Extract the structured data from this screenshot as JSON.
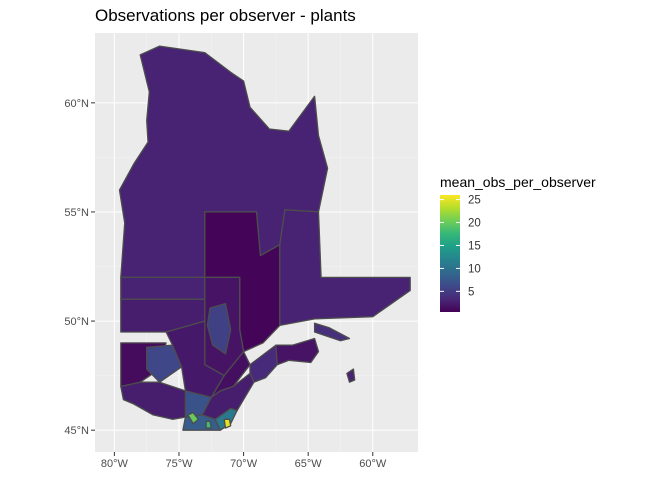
{
  "chart_data": {
    "type": "choropleth",
    "title": "Observations per observer - plants",
    "region": "Quebec",
    "x_axis": {
      "unit": "longitude",
      "range": [
        -81.5,
        -56.5
      ],
      "ticks": [
        {
          "value": -80,
          "label": "80°W"
        },
        {
          "value": -75,
          "label": "75°W"
        },
        {
          "value": -70,
          "label": "70°W"
        },
        {
          "value": -65,
          "label": "65°W"
        },
        {
          "value": -60,
          "label": "60°W"
        }
      ]
    },
    "y_axis": {
      "unit": "latitude",
      "range": [
        44.0,
        63.2
      ],
      "ticks": [
        {
          "value": 45,
          "label": "45°N"
        },
        {
          "value": 50,
          "label": "50°N"
        },
        {
          "value": 55,
          "label": "55°N"
        },
        {
          "value": 60,
          "label": "60°N"
        }
      ]
    },
    "grid": true,
    "legend": {
      "title": "mean_obs_per_observer",
      "placement": "right",
      "min": 0.5,
      "max": 26,
      "breaks": [
        {
          "value": 5,
          "label": "5"
        },
        {
          "value": 10,
          "label": "10"
        },
        {
          "value": 15,
          "label": "15"
        },
        {
          "value": 20,
          "label": "20"
        },
        {
          "value": 25,
          "label": "25"
        }
      ],
      "palette": [
        "#440154",
        "#482878",
        "#3e4989",
        "#31688e",
        "#26828e",
        "#1f9e89",
        "#35b779",
        "#6ece58",
        "#b5de2b",
        "#fde725"
      ]
    },
    "panel_background": "#ebebeb",
    "border_color": "#4d4d4d",
    "regions": [
      {
        "id": "nord-du-quebec",
        "value": 3.0,
        "outline": [
          [
            -79.5,
            52
          ],
          [
            -79.2,
            54.5
          ],
          [
            -79.6,
            56
          ],
          [
            -78.5,
            57.2
          ],
          [
            -77.4,
            58.2
          ],
          [
            -77.5,
            59.2
          ],
          [
            -77.3,
            60.5
          ],
          [
            -78.0,
            62.2
          ],
          [
            -76.5,
            62.6
          ],
          [
            -73.0,
            62.3
          ],
          [
            -71.0,
            61.4
          ],
          [
            -70.0,
            61.0
          ],
          [
            -69.5,
            59.8
          ],
          [
            -68.0,
            58.8
          ],
          [
            -66.5,
            58.7
          ],
          [
            -64.5,
            60.3
          ],
          [
            -64.2,
            58.5
          ],
          [
            -63.5,
            57.0
          ],
          [
            -64.2,
            55.0
          ],
          [
            -66.8,
            55.1
          ],
          [
            -67.2,
            53.5
          ],
          [
            -68.7,
            53.0
          ],
          [
            -69.0,
            55.0
          ],
          [
            -73.0,
            55.0
          ],
          [
            -73.0,
            52.0
          ]
        ]
      },
      {
        "id": "cote-nord-west",
        "value": 0.8,
        "outline": [
          [
            -73.0,
            55.0
          ],
          [
            -69.0,
            55.0
          ],
          [
            -68.7,
            53.0
          ],
          [
            -67.2,
            53.5
          ],
          [
            -67.2,
            49.8
          ],
          [
            -68.5,
            49.0
          ],
          [
            -70.0,
            48.6
          ],
          [
            -70.3,
            49.6
          ],
          [
            -70.3,
            52.0
          ],
          [
            -73.0,
            52.0
          ]
        ]
      },
      {
        "id": "cote-nord-east",
        "value": 3.0,
        "outline": [
          [
            -67.2,
            53.5
          ],
          [
            -66.8,
            55.1
          ],
          [
            -64.2,
            55.0
          ],
          [
            -64.0,
            52.0
          ],
          [
            -57.1,
            52.0
          ],
          [
            -57.1,
            51.4
          ],
          [
            -60.0,
            50.2
          ],
          [
            -64.5,
            50.1
          ],
          [
            -67.2,
            49.8
          ]
        ]
      },
      {
        "id": "jamesie-south",
        "value": 3.0,
        "outline": [
          [
            -79.5,
            52
          ],
          [
            -73.0,
            52
          ],
          [
            -73.0,
            51.0
          ],
          [
            -79.5,
            51.0
          ]
        ]
      },
      {
        "id": "abitibi-north",
        "value": 2.5,
        "outline": [
          [
            -79.5,
            51.0
          ],
          [
            -73.0,
            51.0
          ],
          [
            -73.0,
            50.0
          ],
          [
            -76.0,
            49.5
          ],
          [
            -79.5,
            49.5
          ]
        ]
      },
      {
        "id": "saguenay-lac",
        "value": 1.8,
        "outline": [
          [
            -73.0,
            52.0
          ],
          [
            -70.3,
            52.0
          ],
          [
            -70.3,
            49.6
          ],
          [
            -70.0,
            48.6
          ],
          [
            -71.5,
            47.5
          ],
          [
            -73.0,
            48.0
          ],
          [
            -73.0,
            50.0
          ]
        ]
      },
      {
        "id": "lac-saint-jean",
        "value": 5.5,
        "outline": [
          [
            -72.6,
            50.6
          ],
          [
            -71.4,
            50.8
          ],
          [
            -71.0,
            49.6
          ],
          [
            -71.4,
            48.5
          ],
          [
            -72.4,
            48.9
          ],
          [
            -72.8,
            49.8
          ]
        ]
      },
      {
        "id": "abitibi-temiscamingue",
        "value": 1.3,
        "outline": [
          [
            -79.5,
            49.0
          ],
          [
            -76.0,
            49.0
          ],
          [
            -76.5,
            47.8
          ],
          [
            -78.0,
            47.2
          ],
          [
            -79.5,
            47.0
          ]
        ]
      },
      {
        "id": "temiscamingue-east",
        "value": 6.0,
        "outline": [
          [
            -77.5,
            48.8
          ],
          [
            -75.5,
            48.9
          ],
          [
            -74.8,
            47.9
          ],
          [
            -76.5,
            47.2
          ],
          [
            -77.5,
            47.8
          ]
        ]
      },
      {
        "id": "mauricie",
        "value": 2.2,
        "outline": [
          [
            -76.0,
            49.5
          ],
          [
            -73.0,
            50.0
          ],
          [
            -73.0,
            48.0
          ],
          [
            -71.5,
            47.5
          ],
          [
            -72.5,
            46.5
          ],
          [
            -74.5,
            46.8
          ],
          [
            -74.8,
            47.9
          ],
          [
            -75.5,
            48.9
          ]
        ]
      },
      {
        "id": "capitale-nationale",
        "value": 1.5,
        "outline": [
          [
            -71.5,
            47.5
          ],
          [
            -70.0,
            48.6
          ],
          [
            -69.5,
            48.0
          ],
          [
            -70.8,
            47.0
          ],
          [
            -71.8,
            46.8
          ],
          [
            -72.5,
            46.5
          ]
        ]
      },
      {
        "id": "outaouais",
        "value": 2.5,
        "outline": [
          [
            -79.5,
            47.0
          ],
          [
            -78.0,
            47.2
          ],
          [
            -76.5,
            47.2
          ],
          [
            -74.5,
            46.8
          ],
          [
            -74.5,
            45.6
          ],
          [
            -75.5,
            45.5
          ],
          [
            -77.0,
            45.7
          ],
          [
            -78.5,
            46.2
          ],
          [
            -79.3,
            46.4
          ]
        ]
      },
      {
        "id": "laurentides",
        "value": 7.0,
        "outline": [
          [
            -74.5,
            46.8
          ],
          [
            -72.5,
            46.5
          ],
          [
            -73.2,
            45.7
          ],
          [
            -74.2,
            45.6
          ],
          [
            -74.5,
            45.6
          ]
        ]
      },
      {
        "id": "monteregie",
        "value": 8.0,
        "outline": [
          [
            -74.5,
            45.6
          ],
          [
            -73.2,
            45.7
          ],
          [
            -72.2,
            45.5
          ],
          [
            -71.8,
            45.0
          ],
          [
            -74.7,
            45.0
          ]
        ]
      },
      {
        "id": "estrie",
        "value": 11.0,
        "outline": [
          [
            -72.2,
            45.5
          ],
          [
            -71.0,
            46.0
          ],
          [
            -70.5,
            45.9
          ],
          [
            -71.0,
            45.3
          ],
          [
            -71.8,
            45.0
          ]
        ]
      },
      {
        "id": "chaudiere-appalaches",
        "value": 2.5,
        "outline": [
          [
            -71.8,
            46.8
          ],
          [
            -70.8,
            47.0
          ],
          [
            -69.5,
            47.6
          ],
          [
            -69.2,
            47.2
          ],
          [
            -70.0,
            46.4
          ],
          [
            -70.5,
            45.9
          ],
          [
            -71.0,
            46.0
          ],
          [
            -72.2,
            45.5
          ],
          [
            -73.2,
            45.7
          ],
          [
            -72.5,
            46.5
          ]
        ]
      },
      {
        "id": "bas-saint-laurent",
        "value": 3.5,
        "outline": [
          [
            -69.5,
            48.0
          ],
          [
            -69.5,
            47.6
          ],
          [
            -69.2,
            47.2
          ],
          [
            -68.3,
            47.4
          ],
          [
            -67.4,
            48.0
          ],
          [
            -66.5,
            48.2
          ],
          [
            -66.2,
            48.9
          ],
          [
            -67.5,
            48.9
          ]
        ]
      },
      {
        "id": "gaspesie",
        "value": 1.8,
        "outline": [
          [
            -67.5,
            48.9
          ],
          [
            -66.2,
            48.9
          ],
          [
            -64.5,
            49.2
          ],
          [
            -64.2,
            48.6
          ],
          [
            -64.8,
            48.1
          ],
          [
            -66.5,
            48.2
          ],
          [
            -67.4,
            48.0
          ]
        ]
      },
      {
        "id": "anticosti",
        "value": 4.0,
        "outline": [
          [
            -64.5,
            49.9
          ],
          [
            -63.4,
            49.7
          ],
          [
            -61.8,
            49.2
          ],
          [
            -62.5,
            49.1
          ],
          [
            -64.5,
            49.5
          ]
        ]
      },
      {
        "id": "iles-de-la-madeleine",
        "value": 3.0,
        "outline": [
          [
            -62.0,
            47.6
          ],
          [
            -61.5,
            47.8
          ],
          [
            -61.4,
            47.3
          ],
          [
            -61.8,
            47.2
          ]
        ]
      },
      {
        "id": "montreal-hotspot",
        "value": 20.0,
        "outline": [
          [
            -74.3,
            45.7
          ],
          [
            -73.9,
            45.8
          ],
          [
            -73.5,
            45.5
          ],
          [
            -73.9,
            45.3
          ]
        ]
      },
      {
        "id": "estrie-hotspot",
        "value": 25.0,
        "outline": [
          [
            -71.5,
            45.5
          ],
          [
            -71.1,
            45.5
          ],
          [
            -71.0,
            45.2
          ],
          [
            -71.4,
            45.1
          ]
        ]
      },
      {
        "id": "monteregie-hotspot",
        "value": 18.0,
        "outline": [
          [
            -72.9,
            45.4
          ],
          [
            -72.6,
            45.4
          ],
          [
            -72.5,
            45.1
          ],
          [
            -72.9,
            45.1
          ]
        ]
      }
    ]
  }
}
